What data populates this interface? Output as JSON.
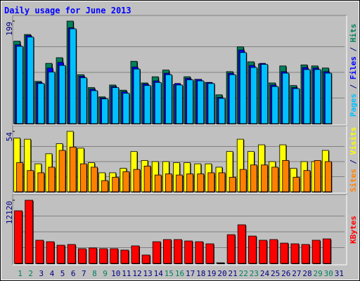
{
  "chart_data": [
    {
      "type": "bar",
      "title": "Daily usage for June 2013",
      "ylim": [
        0,
        199
      ],
      "yticks": [
        199
      ],
      "legend_separator": " / ",
      "series": [
        {
          "name": "Pages",
          "color": "#00c0ff",
          "values": [
            150,
            168,
            78,
            100,
            113,
            184,
            89,
            64,
            48,
            70,
            59,
            106,
            74,
            80,
            95,
            75,
            85,
            83,
            78,
            49,
            95,
            138,
            109,
            115,
            72,
            98,
            68,
            105,
            105,
            98,
            null
          ]
        },
        {
          "name": "Files",
          "color": "#0000ff",
          "values": [
            153,
            171,
            80,
            108,
            119,
            186,
            92,
            67,
            50,
            72,
            62,
            110,
            77,
            83,
            98,
            78,
            88,
            86,
            80,
            51,
            98,
            143,
            113,
            117,
            75,
            101,
            70,
            109,
            108,
            101,
            null
          ]
        },
        {
          "name": "Hits",
          "color": "#00805c",
          "values": [
            160,
            173,
            82,
            117,
            128,
            199,
            95,
            70,
            52,
            75,
            65,
            121,
            79,
            91,
            104,
            76,
            91,
            86,
            80,
            56,
            101,
            149,
            120,
            116,
            79,
            112,
            74,
            114,
            112,
            108,
            null
          ]
        }
      ]
    },
    {
      "type": "bar",
      "ylim": [
        0,
        54
      ],
      "yticks": [
        54
      ],
      "legend_separator": " / ",
      "series": [
        {
          "name": "Sites",
          "color": "#ff8000",
          "values": [
            26,
            19,
            17,
            22,
            37,
            40,
            25,
            22,
            10,
            13,
            18,
            20,
            23,
            15,
            16,
            15,
            16,
            16,
            17,
            17,
            13,
            20,
            24,
            24,
            22,
            28,
            13,
            19,
            28,
            27,
            null
          ]
        },
        {
          "name": "Visits",
          "color": "#ffff00",
          "values": [
            48,
            47,
            25,
            34,
            43,
            54,
            39,
            26,
            17,
            17,
            21,
            36,
            28,
            27,
            27,
            26,
            26,
            25,
            25,
            22,
            36,
            47,
            36,
            42,
            27,
            42,
            21,
            27,
            27,
            37,
            null
          ]
        }
      ]
    },
    {
      "type": "bar",
      "ylim": [
        0,
        12120
      ],
      "yticks": [
        12120
      ],
      "categories": [
        "1",
        "2",
        "3",
        "4",
        "5",
        "6",
        "7",
        "8",
        "9",
        "10",
        "11",
        "12",
        "13",
        "14",
        "15",
        "16",
        "17",
        "18",
        "19",
        "20",
        "21",
        "22",
        "23",
        "24",
        "25",
        "26",
        "27",
        "28",
        "29",
        "30",
        "31"
      ],
      "category_colors": [
        "#00805c",
        "#00805c",
        "#000080",
        "#000080",
        "#000080",
        "#000080",
        "#000080",
        "#00805c",
        "#00805c",
        "#000080",
        "#000080",
        "#000080",
        "#000080",
        "#000080",
        "#00805c",
        "#00805c",
        "#000080",
        "#000080",
        "#000080",
        "#000080",
        "#000080",
        "#00805c",
        "#00805c",
        "#000080",
        "#000080",
        "#000080",
        "#000080",
        "#000080",
        "#00805c",
        "#00805c",
        "#000080"
      ],
      "series": [
        {
          "name": "KBytes",
          "color": "#ff0000",
          "values": [
            10100,
            12120,
            4450,
            4170,
            3500,
            3640,
            2830,
            2970,
            2830,
            2830,
            2560,
            3370,
            1620,
            4170,
            4580,
            4580,
            4310,
            4170,
            3770,
            130,
            5520,
            7410,
            5250,
            4450,
            4580,
            3900,
            3770,
            3640,
            4450,
            4710,
            null
          ]
        }
      ]
    }
  ]
}
